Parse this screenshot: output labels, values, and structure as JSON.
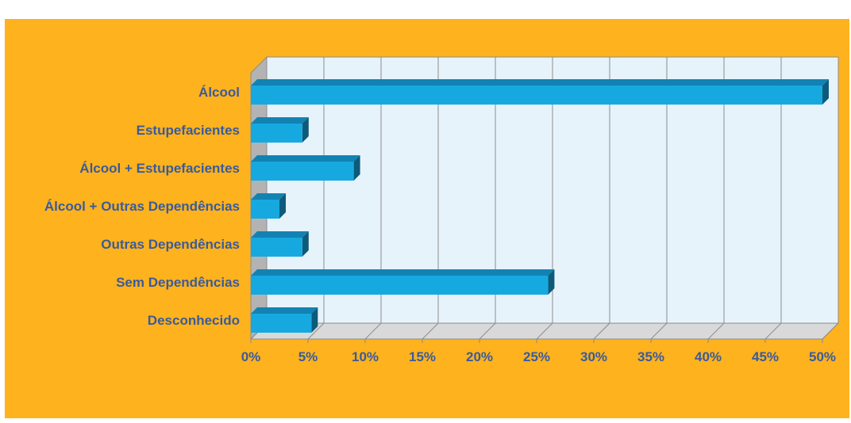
{
  "title": "",
  "colors": {
    "panel": "#fdb21e",
    "plot_bg": "#e6f3fb",
    "side_wall": "#b3b3b3",
    "floor": "#d9d9d9",
    "bar_front": "#16a9e0",
    "bar_top": "#1282b2",
    "bar_side": "#0d5a7a",
    "label": "#3b5b9a",
    "grid": "#8c8c8c"
  },
  "chart_data": {
    "type": "bar",
    "orientation": "horizontal",
    "three_d": true,
    "categories": [
      "Álcool",
      "Estupefacientes",
      "Álcool + Estupefacientes",
      "Álcool + Outras Dependências",
      "Outras Dependências",
      "Sem Dependências",
      "Desconhecido"
    ],
    "values": [
      50,
      4.5,
      9,
      2.5,
      4.5,
      26,
      5.3
    ],
    "xlim": [
      0,
      50
    ],
    "x_ticks": [
      "0%",
      "5%",
      "10%",
      "15%",
      "20%",
      "25%",
      "30%",
      "35%",
      "40%",
      "45%",
      "50%"
    ],
    "grid": true,
    "legend": "none"
  }
}
